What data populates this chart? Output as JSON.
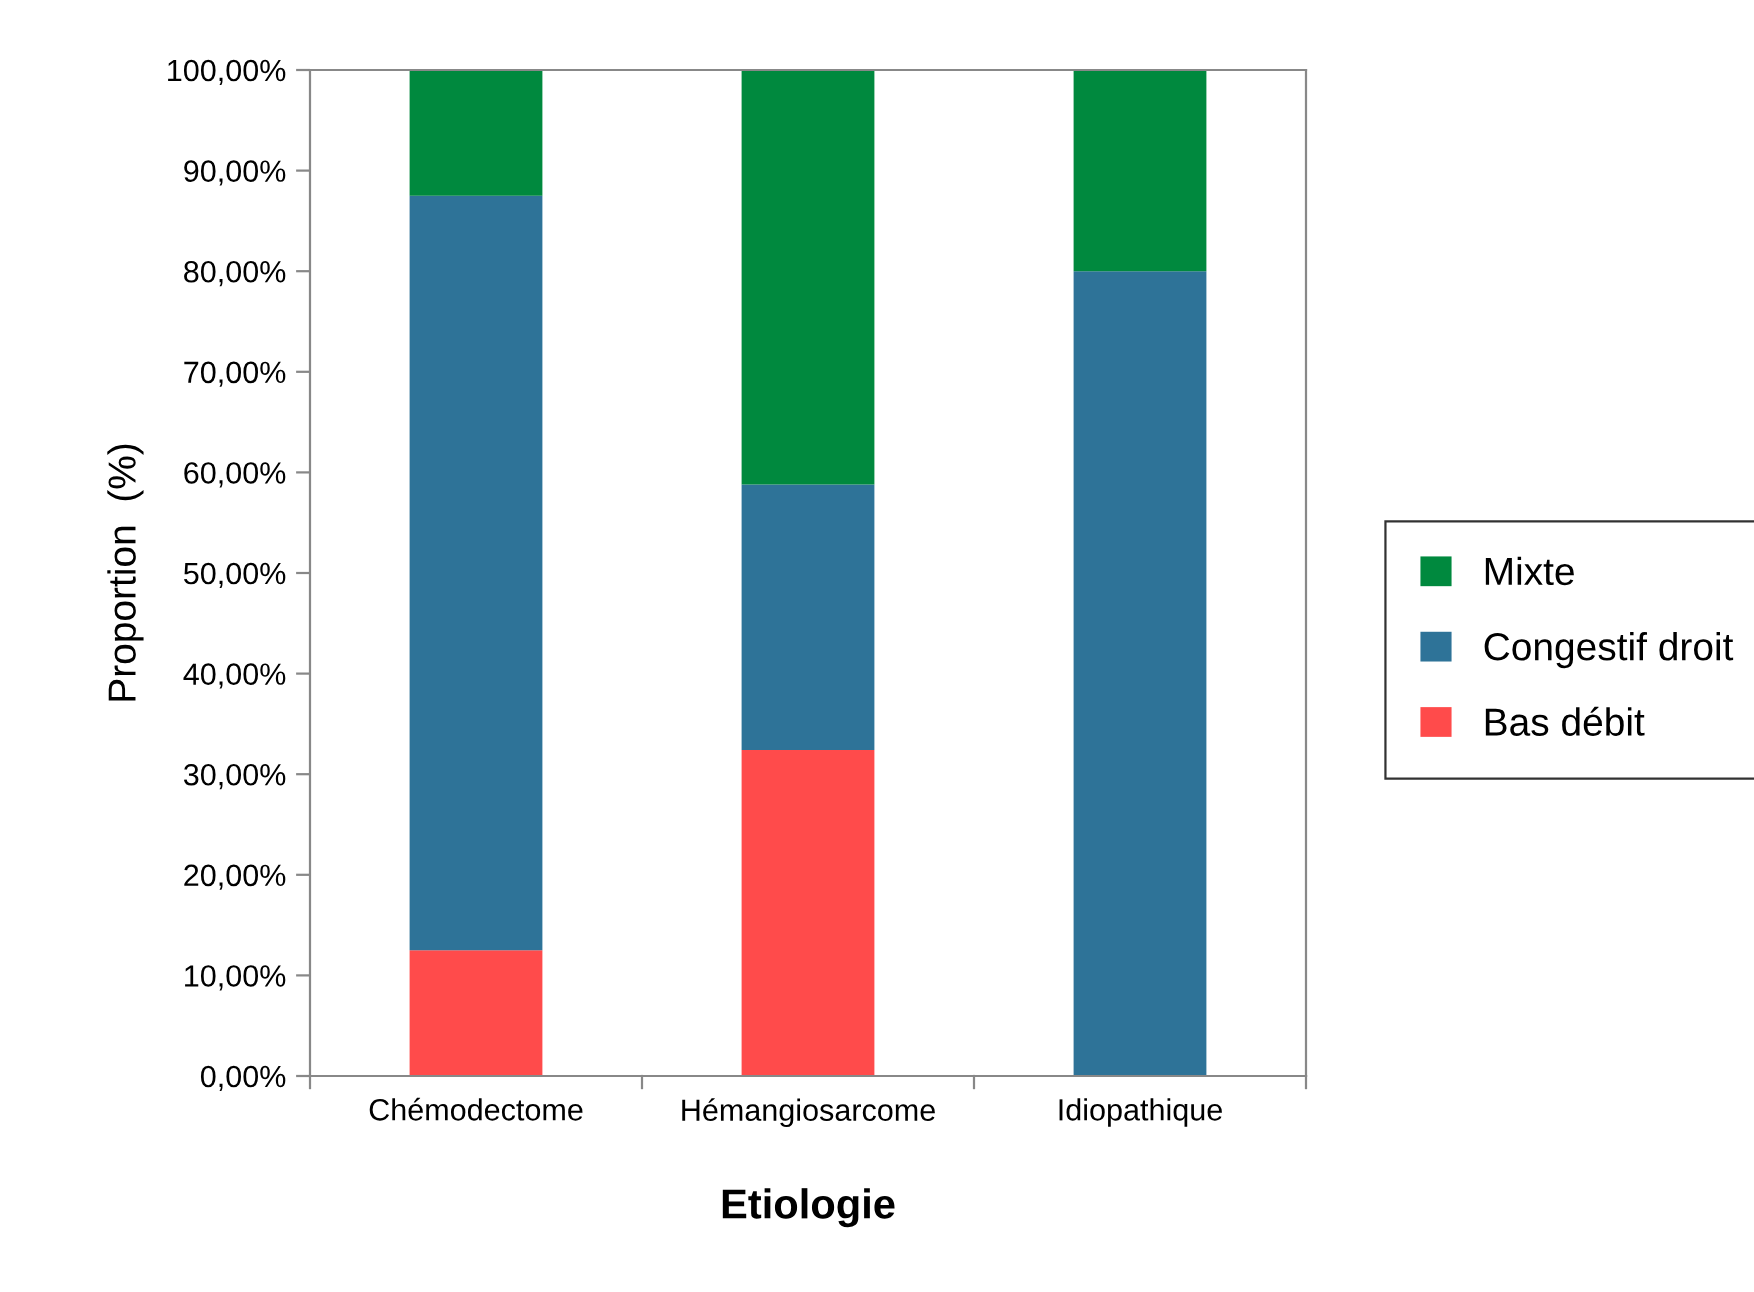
{
  "chart_data": {
    "type": "bar",
    "stacked": true,
    "xlabel": "Etiologie",
    "ylabel": "Proportion  (%)",
    "categories": [
      "Chémodectome",
      "Hémangiosarcome",
      "Idiopathique"
    ],
    "series": [
      {
        "name": "Bas débit",
        "color": "#ff4b4b",
        "values": [
          12.5,
          32.4,
          0
        ]
      },
      {
        "name": "Congestif droit",
        "color": "#2e7398",
        "values": [
          75,
          26.4,
          80
        ]
      },
      {
        "name": "Mixte",
        "color": "#00893e",
        "values": [
          12.5,
          41.2,
          20
        ]
      }
    ],
    "ylim": [
      0,
      100
    ],
    "yticks": [
      {
        "value": 0,
        "label": "0,00%"
      },
      {
        "value": 10,
        "label": "10,00%"
      },
      {
        "value": 20,
        "label": "20,00%"
      },
      {
        "value": 30,
        "label": "30,00%"
      },
      {
        "value": 40,
        "label": "40,00%"
      },
      {
        "value": 50,
        "label": "50,00%"
      },
      {
        "value": 60,
        "label": "60,00%"
      },
      {
        "value": 70,
        "label": "70,00%"
      },
      {
        "value": 80,
        "label": "80,00%"
      },
      {
        "value": 90,
        "label": "90,00%"
      },
      {
        "value": 100,
        "label": "100,00%"
      }
    ],
    "legend": "right",
    "grid": false
  }
}
